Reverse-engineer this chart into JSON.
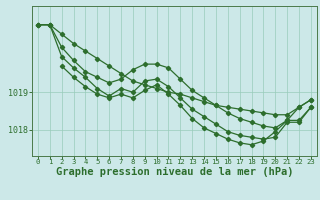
{
  "background_color": "#cce8e8",
  "grid_color": "#99ccbb",
  "line_color": "#2d6e2d",
  "xlabel": "Graphe pression niveau de la mer (hPa)",
  "xlabel_fontsize": 7.5,
  "yticks": [
    1018,
    1019
  ],
  "ylim": [
    1017.3,
    1021.3
  ],
  "xlim": [
    -0.5,
    23.5
  ],
  "xticks": [
    0,
    1,
    2,
    3,
    4,
    5,
    6,
    7,
    8,
    9,
    10,
    11,
    12,
    13,
    14,
    15,
    16,
    17,
    18,
    19,
    20,
    21,
    22,
    23
  ],
  "lines": [
    {
      "x": [
        0,
        1,
        2,
        3,
        4,
        5,
        6,
        7,
        8,
        9,
        10,
        11,
        12,
        13,
        14,
        15,
        16,
        17,
        18,
        19,
        20,
        21,
        22,
        23
      ],
      "y": [
        1020.8,
        1020.8,
        1020.55,
        1020.3,
        1020.1,
        1019.9,
        1019.7,
        1019.5,
        1019.3,
        1019.2,
        1019.1,
        1019.0,
        1018.95,
        1018.85,
        1018.75,
        1018.65,
        1018.6,
        1018.55,
        1018.5,
        1018.45,
        1018.4,
        1018.4,
        1018.6,
        1018.8
      ]
    },
    {
      "x": [
        0,
        1,
        2,
        3,
        4,
        5,
        6,
        7,
        8,
        9,
        10,
        11,
        12,
        13,
        14,
        15,
        16,
        17,
        18,
        19,
        20,
        21,
        22,
        23
      ],
      "y": [
        1020.8,
        1020.8,
        1020.2,
        1019.85,
        1019.55,
        1019.4,
        1019.25,
        1019.35,
        1019.6,
        1019.75,
        1019.75,
        1019.65,
        1019.35,
        1019.05,
        1018.85,
        1018.65,
        1018.45,
        1018.3,
        1018.2,
        1018.1,
        1018.05,
        1018.25,
        1018.6,
        1018.8
      ]
    },
    {
      "x": [
        0,
        1,
        2,
        3,
        4,
        5,
        6,
        7,
        8,
        9,
        10,
        11,
        12,
        13,
        14,
        15,
        16,
        17,
        18,
        19,
        20,
        21,
        22,
        23
      ],
      "y": [
        1020.8,
        1020.8,
        1019.95,
        1019.65,
        1019.4,
        1019.1,
        1018.9,
        1019.1,
        1019.0,
        1019.3,
        1019.35,
        1019.15,
        1018.85,
        1018.55,
        1018.35,
        1018.15,
        1017.95,
        1017.85,
        1017.8,
        1017.75,
        1017.8,
        1018.2,
        1018.2,
        1018.6
      ]
    },
    {
      "x": [
        2,
        3,
        4,
        5,
        6,
        7,
        8,
        9,
        10,
        11,
        12,
        13,
        14,
        15,
        16,
        17,
        18,
        19,
        20,
        21,
        22,
        23
      ],
      "y": [
        1019.7,
        1019.4,
        1019.15,
        1018.95,
        1018.85,
        1018.95,
        1018.85,
        1019.05,
        1019.2,
        1018.95,
        1018.65,
        1018.3,
        1018.05,
        1017.9,
        1017.75,
        1017.65,
        1017.6,
        1017.7,
        1017.95,
        1018.25,
        1018.25,
        1018.6
      ]
    }
  ],
  "marker": "D",
  "marker_size": 2.2,
  "line_width": 0.9
}
